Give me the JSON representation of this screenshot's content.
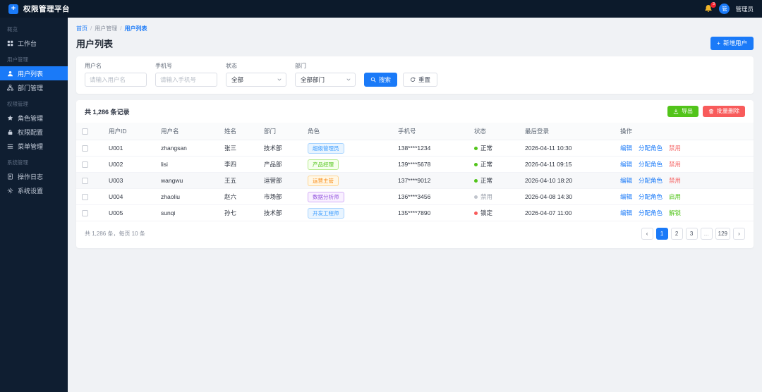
{
  "colors": {
    "accent_blue": "#1a7af8",
    "header_bg": "#0c1a2b",
    "sidebar_bg": "#0f1e31",
    "page_bg": "#f0f2f5",
    "success_green": "#52c41a",
    "danger_red": "#f85b5b",
    "warning_orange": "#fa8c16",
    "purple": "#9254de",
    "bell_gold": "#f0b429"
  },
  "header": {
    "app_title": "权限管理平台",
    "logo_glyph": "+",
    "bell_icon": "bell-icon",
    "notification_count": "3",
    "avatar_text": "管",
    "username": "管理员"
  },
  "sidebar": {
    "groups": [
      {
        "label": "概览",
        "items": [
          {
            "label": "工作台",
            "icon": "grid-icon",
            "active": false
          }
        ]
      },
      {
        "label": "用户管理",
        "items": [
          {
            "label": "用户列表",
            "icon": "user-icon",
            "active": true
          },
          {
            "label": "部门管理",
            "icon": "sitemap-icon",
            "active": false
          }
        ]
      },
      {
        "label": "权限管理",
        "items": [
          {
            "label": "角色管理",
            "icon": "star-icon",
            "active": false
          },
          {
            "label": "权限配置",
            "icon": "lock-icon",
            "active": false
          },
          {
            "label": "菜单管理",
            "icon": "menu-list-icon",
            "active": false
          }
        ]
      },
      {
        "label": "系统管理",
        "items": [
          {
            "label": "操作日志",
            "icon": "document-icon",
            "active": false
          },
          {
            "label": "系统设置",
            "icon": "gear-icon",
            "active": false
          }
        ]
      }
    ]
  },
  "breadcrumb": {
    "separator": "/",
    "items": [
      {
        "label": "首页"
      },
      {
        "label": "用户管理"
      },
      {
        "label": "用户列表"
      }
    ]
  },
  "page": {
    "title": "用户列表",
    "add_user_button": {
      "plus_glyph": "+",
      "label": "新增用户"
    }
  },
  "filters": {
    "username_field": {
      "label": "用户名",
      "placeholder": "请输入用户名"
    },
    "phone_field": {
      "label": "手机号",
      "placeholder": "请输入手机号"
    },
    "status_field": {
      "label": "状态",
      "value": "全部",
      "icon": "chevron-down-icon"
    },
    "department_field": {
      "label": "部门",
      "value": "全部部门",
      "icon": "chevron-down-icon"
    },
    "search_button": {
      "label": "搜索",
      "icon": "search-icon"
    },
    "reset_button": {
      "label": "重置",
      "icon": "reset-icon"
    }
  },
  "table": {
    "total_text": "共 1,286 条记录",
    "toolbar": {
      "export_label": "导出",
      "export_icon": "download-icon",
      "batch_delete_label": "批量删除",
      "batch_delete_icon": "trash-icon"
    },
    "columns": [
      "用户ID",
      "用户名",
      "姓名",
      "部门",
      "角色",
      "手机号",
      "状态",
      "最后登录",
      "操作"
    ],
    "rows": [
      {
        "user_id": "U001",
        "username": "zhangsan",
        "name": "张三",
        "department": "技术部",
        "role": {
          "label": "超级管理员",
          "color": "blue"
        },
        "phone": "138****1234",
        "status": {
          "label": "正常",
          "type": "normal"
        },
        "last_login": "2026-04-11 10:30",
        "highlighted": false,
        "actions": [
          {
            "label": "编辑",
            "type": "primary"
          },
          {
            "label": "分配角色",
            "type": "primary"
          },
          {
            "label": "禁用",
            "type": "danger"
          }
        ]
      },
      {
        "user_id": "U002",
        "username": "lisi",
        "name": "李四",
        "department": "产品部",
        "role": {
          "label": "产品经理",
          "color": "green"
        },
        "phone": "139****5678",
        "status": {
          "label": "正常",
          "type": "normal"
        },
        "last_login": "2026-04-11 09:15",
        "highlighted": false,
        "actions": [
          {
            "label": "编辑",
            "type": "primary"
          },
          {
            "label": "分配角色",
            "type": "primary"
          },
          {
            "label": "禁用",
            "type": "danger"
          }
        ]
      },
      {
        "user_id": "U003",
        "username": "wangwu",
        "name": "王五",
        "department": "运营部",
        "role": {
          "label": "运营主管",
          "color": "orange"
        },
        "phone": "137****9012",
        "status": {
          "label": "正常",
          "type": "normal"
        },
        "last_login": "2026-04-10 18:20",
        "highlighted": true,
        "actions": [
          {
            "label": "编辑",
            "type": "primary"
          },
          {
            "label": "分配角色",
            "type": "primary"
          },
          {
            "label": "禁用",
            "type": "danger"
          }
        ]
      },
      {
        "user_id": "U004",
        "username": "zhaoliu",
        "name": "赵六",
        "department": "市场部",
        "role": {
          "label": "数据分析师",
          "color": "purple"
        },
        "phone": "136****3456",
        "status": {
          "label": "禁用",
          "type": "disabled"
        },
        "last_login": "2026-04-08 14:30",
        "highlighted": false,
        "actions": [
          {
            "label": "编辑",
            "type": "primary"
          },
          {
            "label": "分配角色",
            "type": "primary"
          },
          {
            "label": "启用",
            "type": "success"
          }
        ]
      },
      {
        "user_id": "U005",
        "username": "sunqi",
        "name": "孙七",
        "department": "技术部",
        "role": {
          "label": "开发工程师",
          "color": "blue"
        },
        "phone": "135****7890",
        "status": {
          "label": "锁定",
          "type": "locked"
        },
        "last_login": "2026-04-07 11:00",
        "highlighted": false,
        "actions": [
          {
            "label": "编辑",
            "type": "primary"
          },
          {
            "label": "分配角色",
            "type": "primary"
          },
          {
            "label": "解锁",
            "type": "success"
          }
        ]
      }
    ]
  },
  "pagination": {
    "summary": "共 1,286 条，每页 10 条",
    "items": [
      {
        "label": "‹",
        "kind": "prev"
      },
      {
        "label": "1",
        "kind": "page",
        "active": true
      },
      {
        "label": "2",
        "kind": "page"
      },
      {
        "label": "3",
        "kind": "page"
      },
      {
        "label": "...",
        "kind": "ellipsis"
      },
      {
        "label": "129",
        "kind": "page"
      },
      {
        "label": "›",
        "kind": "next"
      }
    ]
  }
}
